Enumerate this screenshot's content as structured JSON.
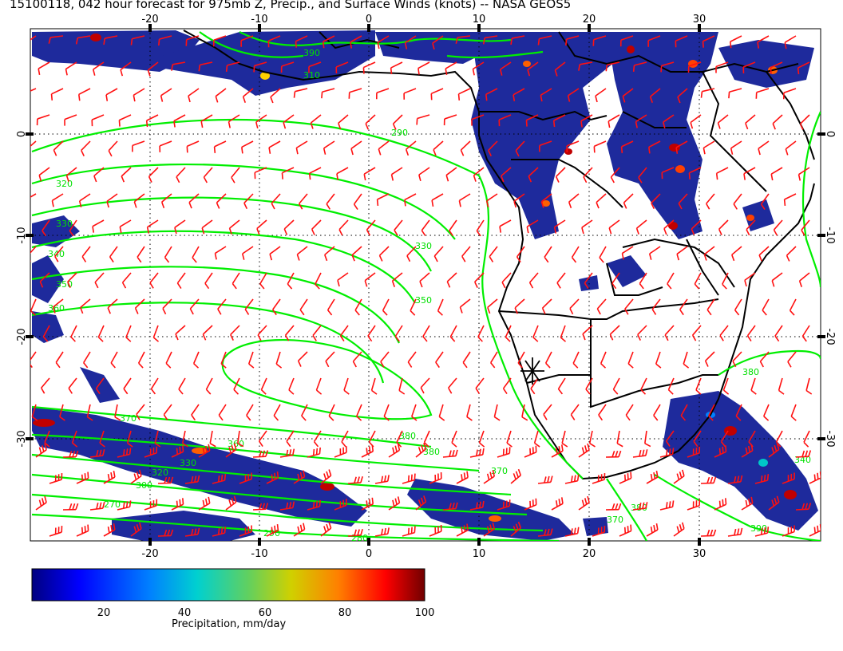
{
  "title": "15100118, 042 hour forecast for 975mb Z, Precip., and Surface Winds (knots) -- NASA GEOS5",
  "map": {
    "lon_range": [
      -30,
      40
    ],
    "lat_range": [
      -39,
      10
    ],
    "lon_ticks": [
      "-20",
      "-10",
      "0",
      "10",
      "20",
      "30"
    ],
    "lat_ticks": [
      "0",
      "-10",
      "-20",
      "-30"
    ],
    "gridlines": "dotted",
    "coastline_color": "#000000",
    "contour_color": "#00ee00",
    "barb_color": "#ff0000",
    "contour_labels": [
      "270",
      "280",
      "290",
      "300",
      "310",
      "320",
      "330",
      "340",
      "350",
      "360",
      "370",
      "380",
      "390"
    ],
    "marker": "asterisk"
  },
  "colorbar": {
    "label": "Precipitation, mm/day",
    "ticks": [
      "20",
      "40",
      "60",
      "80",
      "100"
    ],
    "range": [
      0,
      100
    ],
    "colors": [
      "#000080",
      "#0000ff",
      "#0080ff",
      "#00d0d0",
      "#60d060",
      "#d0d000",
      "#ff8000",
      "#ff0000",
      "#800000"
    ]
  }
}
